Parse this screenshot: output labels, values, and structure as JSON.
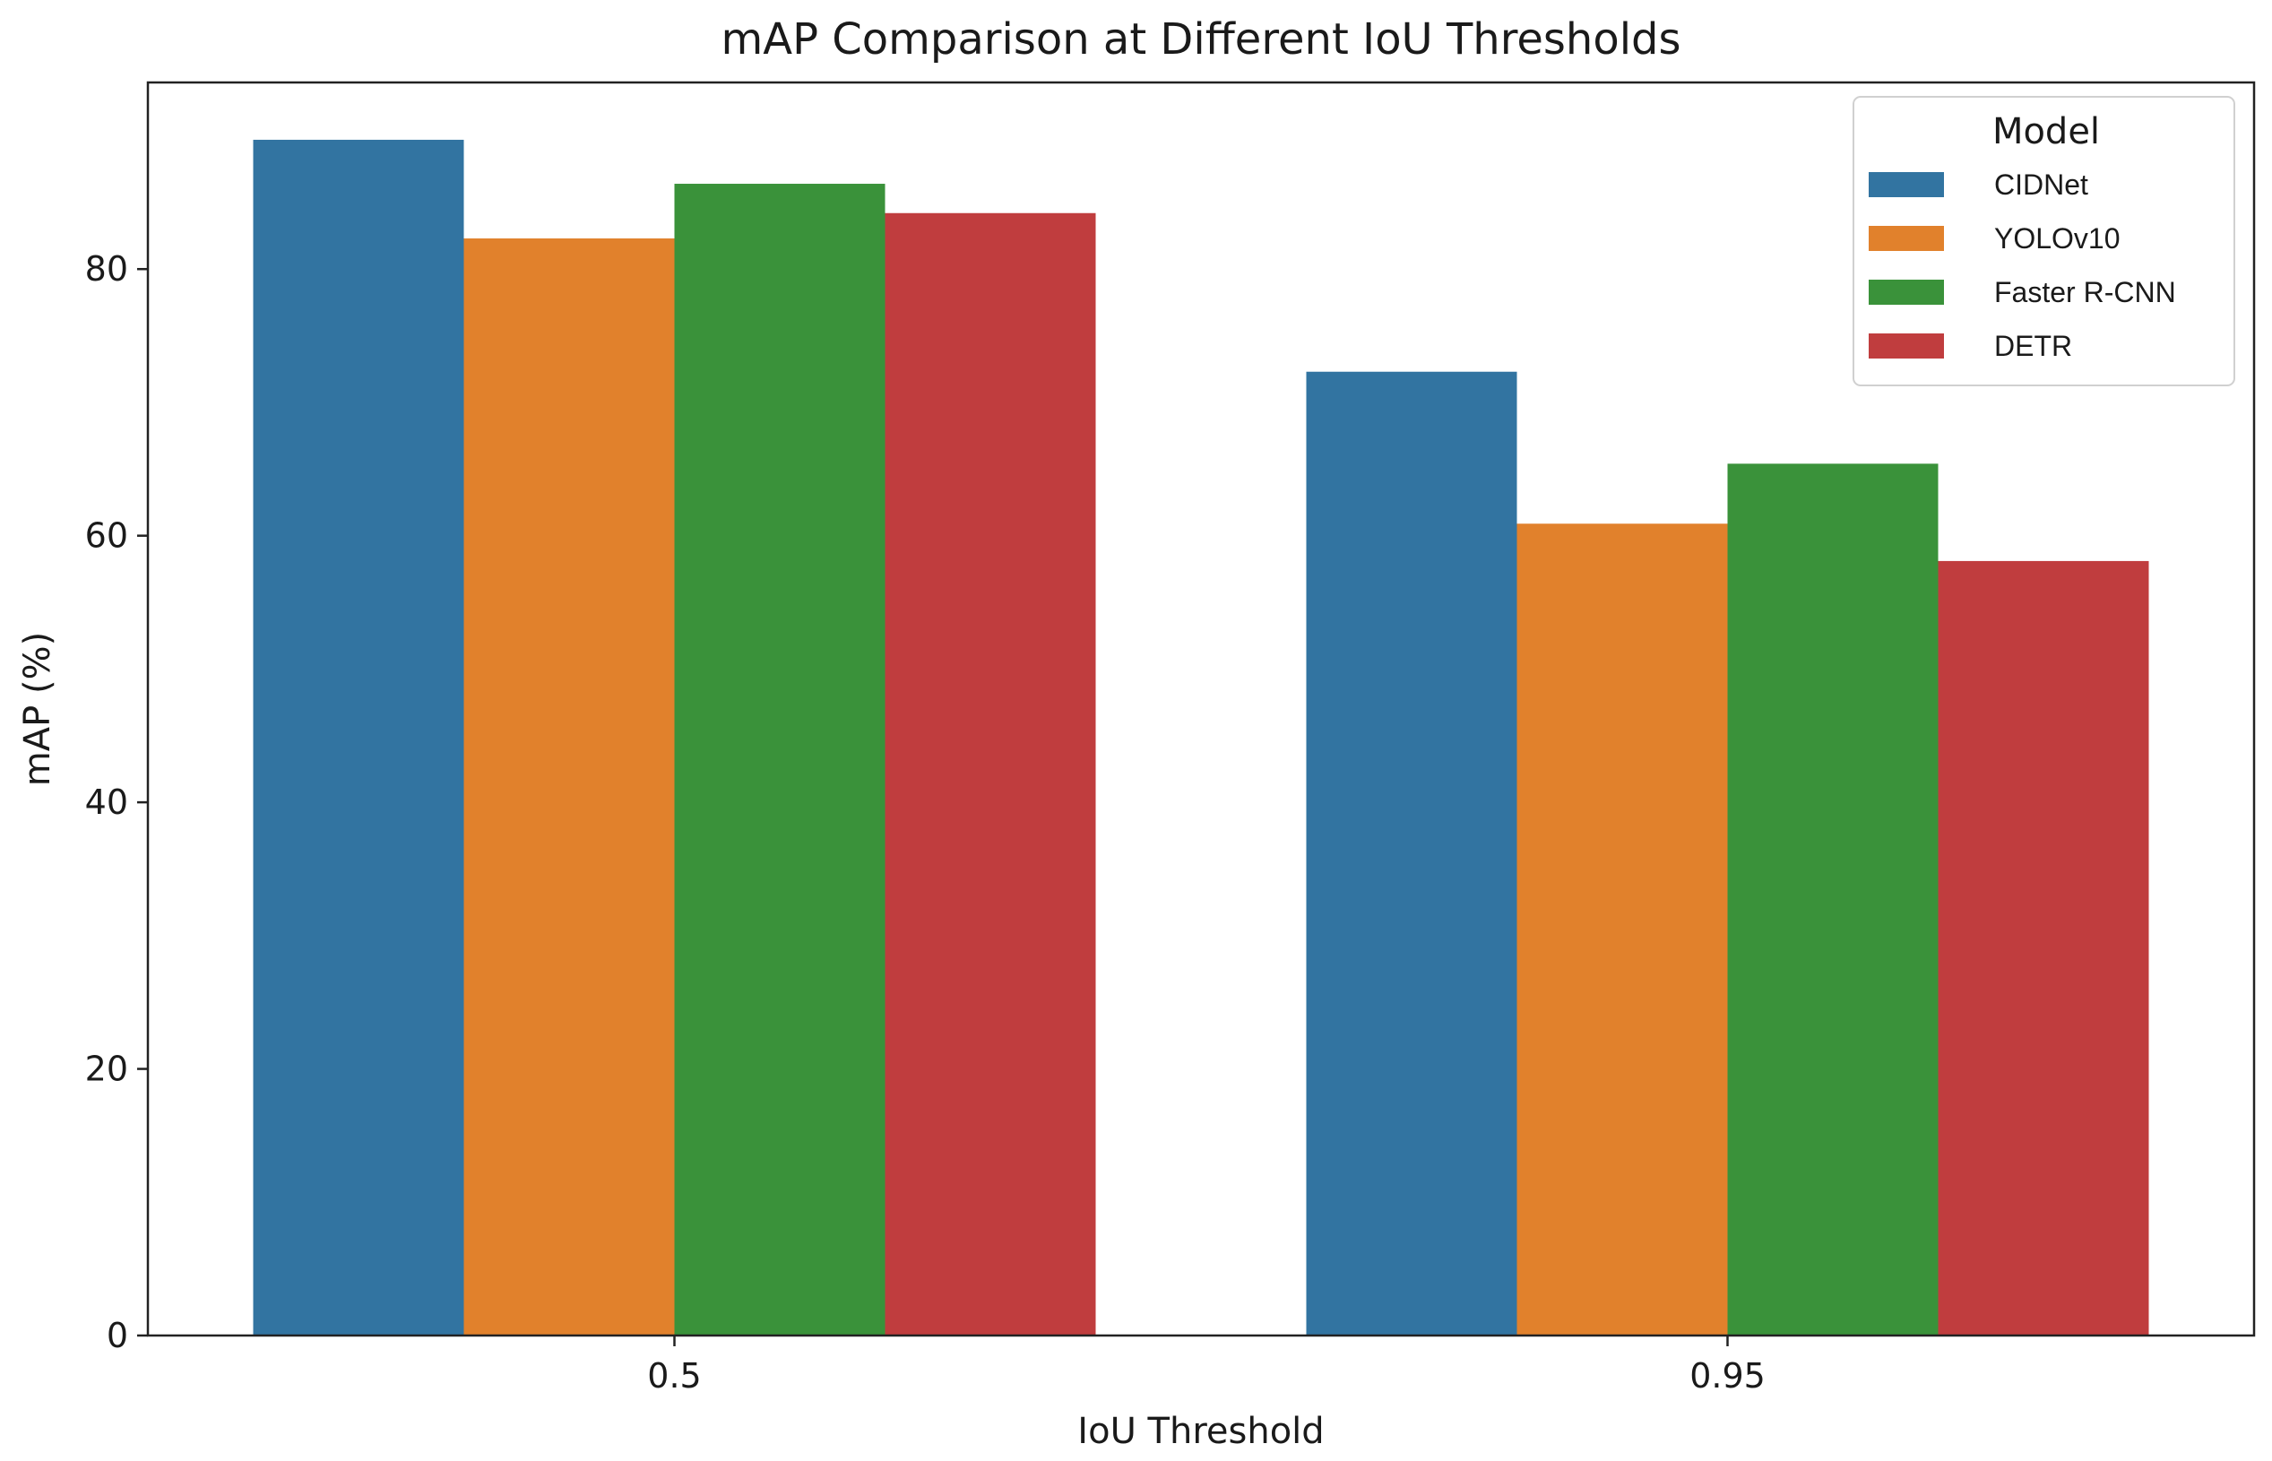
{
  "chart_data": {
    "type": "bar",
    "title": "mAP Comparison at Different IoU Thresholds",
    "xlabel": "IoU Threshold",
    "ylabel": "mAP (%)",
    "categories": [
      "0.5",
      "0.95"
    ],
    "ylim": [
      0,
      94
    ],
    "yticks": [
      0,
      20,
      40,
      60,
      80
    ],
    "grid": false,
    "legend": {
      "title": "Model",
      "placement": "top-right"
    },
    "series": [
      {
        "name": "CIDNet",
        "color": "#3274a1",
        "values": [
          89.7,
          72.3
        ]
      },
      {
        "name": "YOLOv10",
        "color": "#e1812c",
        "values": [
          82.3,
          60.9
        ]
      },
      {
        "name": "Faster R-CNN",
        "color": "#3a923a",
        "values": [
          86.4,
          65.4
        ]
      },
      {
        "name": "DETR",
        "color": "#c03d3e",
        "values": [
          84.2,
          58.1
        ]
      }
    ]
  }
}
